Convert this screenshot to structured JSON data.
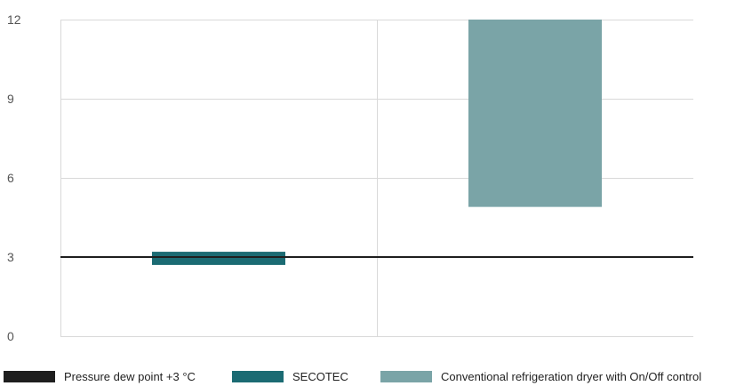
{
  "chart_data": {
    "type": "bar",
    "title": "",
    "xlabel": "",
    "ylabel": "",
    "ylim": [
      0,
      12
    ],
    "yticks": [
      0,
      3,
      6,
      9,
      12
    ],
    "grid": true,
    "legend_position": "bottom",
    "reference_line": {
      "name": "Pressure dew point +3 °C",
      "value": 3,
      "color": "#1e1e1e"
    },
    "series": [
      {
        "name": "SECOTEC",
        "low": 2.7,
        "high": 3.2,
        "color": "#1b6b73"
      },
      {
        "name": "Conventional refrigeration dryer with On/Off control",
        "low": 4.9,
        "high": 12,
        "color": "#7aa4a7"
      }
    ]
  },
  "legend": [
    {
      "label": "Pressure dew point +3 °C",
      "color": "#1e1e1e"
    },
    {
      "label": "SECOTEC",
      "color": "#1b6b73"
    },
    {
      "label": "Conventional refrigeration dryer with On/Off control",
      "color": "#7aa4a7"
    }
  ]
}
